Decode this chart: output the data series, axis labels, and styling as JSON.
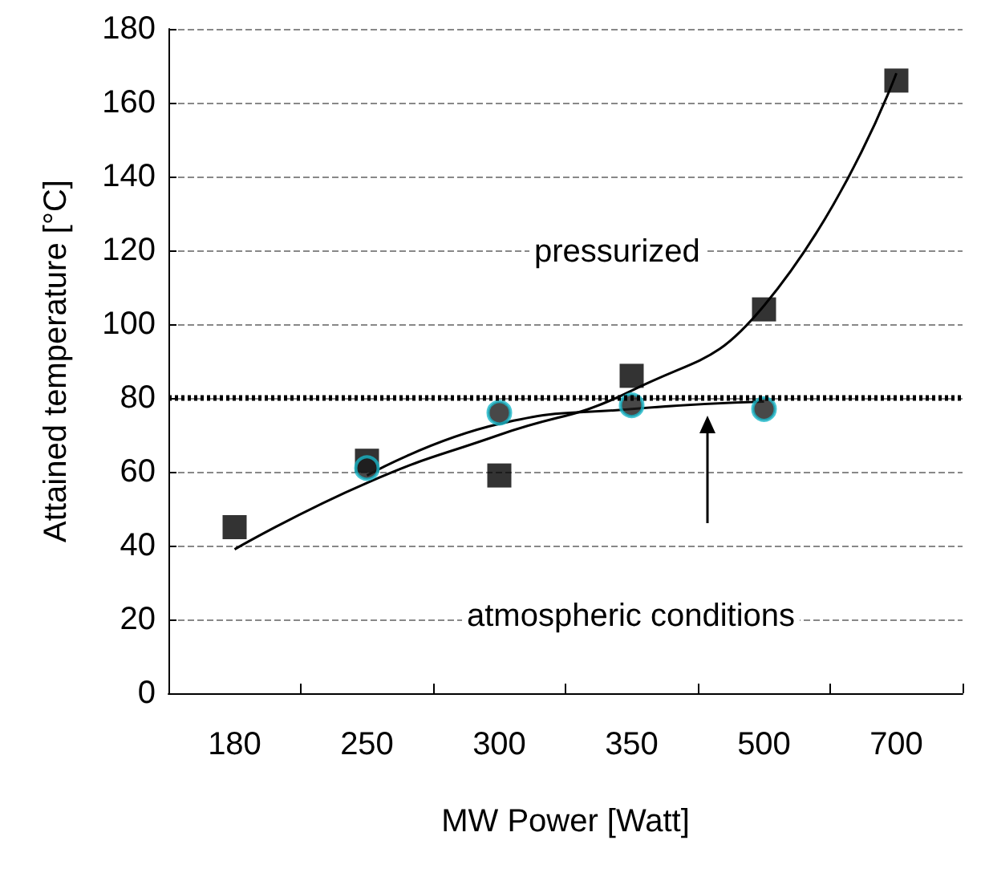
{
  "chart_data": {
    "type": "scatter",
    "xlabel": "MW Power [Watt]",
    "ylabel": "Attained temperature [°C]",
    "categories": [
      "180",
      "250",
      "300",
      "350",
      "500",
      "700"
    ],
    "ylim": [
      0,
      180
    ],
    "yticks": [
      0,
      20,
      40,
      60,
      80,
      100,
      120,
      140,
      160,
      180
    ],
    "grid": "y",
    "series": [
      {
        "marker": "square",
        "color": "#000000",
        "values": [
          45,
          63,
          59,
          86,
          104,
          166
        ]
      },
      {
        "marker": "circle",
        "color": "#1a1a1a",
        "values": [
          null,
          61,
          76,
          78,
          77,
          null
        ]
      },
      {
        "type": "line",
        "marker": "none",
        "color": "#000000",
        "values": [
          39,
          57,
          70,
          82,
          105,
          168
        ]
      },
      {
        "type": "line",
        "marker": "none",
        "color": "#000000",
        "values": [
          null,
          59,
          73,
          77,
          79,
          null
        ]
      }
    ],
    "ref_lines": [
      {
        "axis": "y",
        "value": 80,
        "line_style": "dotted",
        "color": "#000000"
      }
    ],
    "annotations": [
      "pressurized",
      "atmospheric conditions"
    ]
  }
}
